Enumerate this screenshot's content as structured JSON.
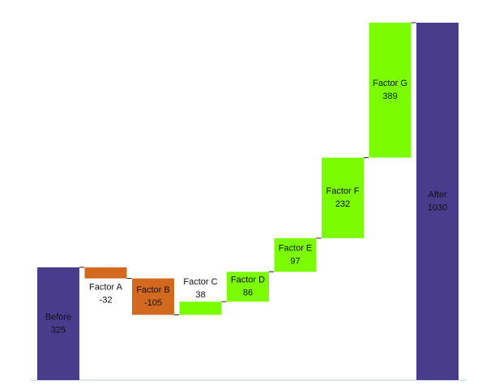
{
  "chart_data": {
    "type": "waterfall",
    "categories": [
      "Before",
      "Factor A",
      "Factor B",
      "Factor C",
      "Factor D",
      "Factor E",
      "Factor F",
      "Factor G",
      "After"
    ],
    "values": [
      325,
      -32,
      -105,
      38,
      86,
      97,
      232,
      389,
      1030
    ],
    "total_indices": [
      0,
      8
    ],
    "total_color": "#4a3c8c",
    "increase_color": "#7cfc00",
    "decrease_color": "#d2691e",
    "baseline_color": "#a8d4dc"
  }
}
